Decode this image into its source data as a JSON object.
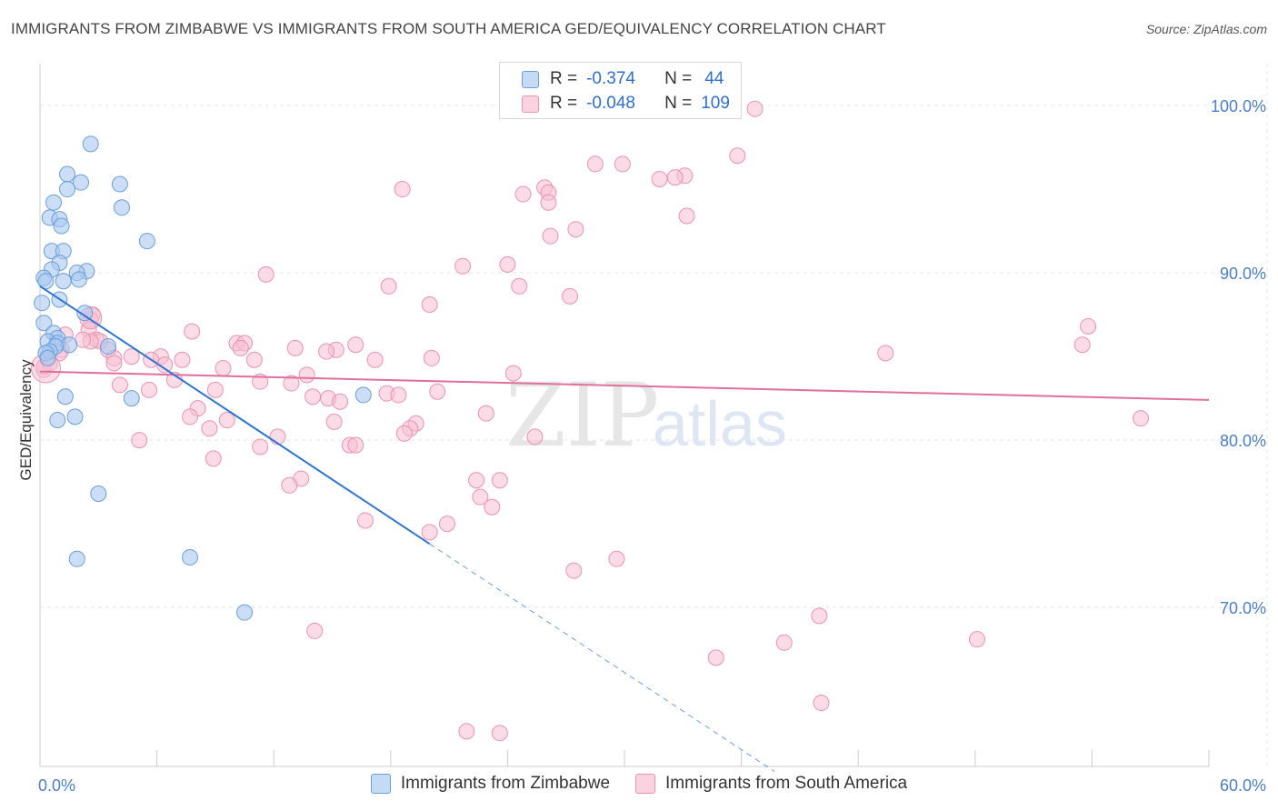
{
  "header": {
    "title": "IMMIGRANTS FROM ZIMBABWE VS IMMIGRANTS FROM SOUTH AMERICA GED/EQUIVALENCY CORRELATION CHART",
    "source": "Source: ZipAtlas.com"
  },
  "watermark": {
    "part1": "ZIP",
    "part2": "atlas"
  },
  "legend": {
    "rows": [
      {
        "r_label": "R =",
        "r_value": "-0.374",
        "n_label": "N =",
        "n_value": "44"
      },
      {
        "r_label": "R =",
        "r_value": "-0.048",
        "n_label": "N =",
        "n_value": "109"
      }
    ]
  },
  "colors": {
    "zimbabwe_fill": "#a8c8f0",
    "zimbabwe_stroke": "#6a9fdc",
    "zimbabwe_line": "#2e74d0",
    "south_america_fill": "#f7bfd2",
    "south_america_stroke": "#ec92b1",
    "south_america_line": "#e0709a",
    "tick_text": "#4a7ec9",
    "grid": "#e4e4e4"
  },
  "chart_data": {
    "type": "scatter",
    "title": "IMMIGRANTS FROM ZIMBABWE VS IMMIGRANTS FROM SOUTH AMERICA GED/EQUIVALENCY CORRELATION CHART",
    "xlabel": "",
    "ylabel": "GED/Equivalency",
    "xlim": [
      0,
      60
    ],
    "ylim": [
      60.5,
      102.5
    ],
    "x_tick_labels": [
      "0.0%",
      "60.0%"
    ],
    "y_ticks": [
      70,
      80,
      90,
      100
    ],
    "y_tick_labels": [
      "70.0%",
      "80.0%",
      "90.0%",
      "100.0%"
    ],
    "grid": true,
    "legend_position": "top-center",
    "series": [
      {
        "name": "Immigrants from Zimbabwe",
        "r": -0.374,
        "n": 44,
        "trend": {
          "x": [
            0,
            20
          ],
          "y": [
            89.2,
            73.8
          ],
          "dashed_to": [
            37.7,
            60.2
          ]
        },
        "points": [
          [
            2.6,
            97.7
          ],
          [
            1.4,
            95.9
          ],
          [
            2.1,
            95.4
          ],
          [
            4.1,
            95.3
          ],
          [
            1.4,
            95.0
          ],
          [
            0.7,
            94.2
          ],
          [
            4.2,
            93.9
          ],
          [
            0.5,
            93.3
          ],
          [
            1.0,
            93.2
          ],
          [
            1.1,
            92.8
          ],
          [
            5.5,
            91.9
          ],
          [
            0.6,
            91.3
          ],
          [
            1.2,
            91.3
          ],
          [
            1.0,
            90.6
          ],
          [
            0.6,
            90.2
          ],
          [
            2.4,
            90.1
          ],
          [
            1.9,
            90.0
          ],
          [
            0.2,
            89.7
          ],
          [
            2.0,
            89.6
          ],
          [
            0.3,
            89.5
          ],
          [
            1.2,
            89.5
          ],
          [
            1.0,
            88.4
          ],
          [
            0.1,
            88.2
          ],
          [
            2.3,
            87.6
          ],
          [
            0.2,
            87.0
          ],
          [
            0.7,
            86.4
          ],
          [
            0.9,
            86.1
          ],
          [
            0.4,
            85.9
          ],
          [
            0.9,
            85.8
          ],
          [
            1.5,
            85.7
          ],
          [
            0.8,
            85.6
          ],
          [
            3.5,
            85.6
          ],
          [
            0.5,
            85.3
          ],
          [
            0.3,
            85.2
          ],
          [
            0.4,
            84.9
          ],
          [
            1.3,
            82.6
          ],
          [
            4.7,
            82.5
          ],
          [
            16.6,
            82.7
          ],
          [
            1.8,
            81.4
          ],
          [
            0.9,
            81.2
          ],
          [
            3.0,
            76.8
          ],
          [
            1.9,
            72.9
          ],
          [
            7.7,
            73.0
          ],
          [
            10.5,
            69.7
          ]
        ]
      },
      {
        "name": "Immigrants from South America",
        "r": -0.048,
        "n": 109,
        "trend": {
          "x": [
            0,
            60
          ],
          "y": [
            84.1,
            82.4
          ]
        },
        "points": [
          [
            36.7,
            99.8
          ],
          [
            35.8,
            97.0
          ],
          [
            28.5,
            96.5
          ],
          [
            29.9,
            96.5
          ],
          [
            33.1,
            95.8
          ],
          [
            32.6,
            95.7
          ],
          [
            31.8,
            95.6
          ],
          [
            25.9,
            95.1
          ],
          [
            18.6,
            95.0
          ],
          [
            26.1,
            94.8
          ],
          [
            24.8,
            94.7
          ],
          [
            26.1,
            94.2
          ],
          [
            33.2,
            93.4
          ],
          [
            27.5,
            92.6
          ],
          [
            26.2,
            92.2
          ],
          [
            24.0,
            90.5
          ],
          [
            21.7,
            90.4
          ],
          [
            11.6,
            89.9
          ],
          [
            17.9,
            89.2
          ],
          [
            24.6,
            89.2
          ],
          [
            27.2,
            88.6
          ],
          [
            20.0,
            88.1
          ],
          [
            2.7,
            87.5
          ],
          [
            2.6,
            87.2
          ],
          [
            53.8,
            86.8
          ],
          [
            2.5,
            86.6
          ],
          [
            1.3,
            86.3
          ],
          [
            7.8,
            86.5
          ],
          [
            2.9,
            86.0
          ],
          [
            3.1,
            85.9
          ],
          [
            10.1,
            85.8
          ],
          [
            10.5,
            85.8
          ],
          [
            16.2,
            85.7
          ],
          [
            2.6,
            85.9
          ],
          [
            10.3,
            85.5
          ],
          [
            13.1,
            85.5
          ],
          [
            53.5,
            85.7
          ],
          [
            15.2,
            85.4
          ],
          [
            14.7,
            85.3
          ],
          [
            1.1,
            85.4
          ],
          [
            3.5,
            85.4
          ],
          [
            43.4,
            85.2
          ],
          [
            4.7,
            85.0
          ],
          [
            6.2,
            85.0
          ],
          [
            3.8,
            84.9
          ],
          [
            7.3,
            84.8
          ],
          [
            5.7,
            84.8
          ],
          [
            20.1,
            84.9
          ],
          [
            17.2,
            84.8
          ],
          [
            11.0,
            84.8
          ],
          [
            3.8,
            84.6
          ],
          [
            6.4,
            84.5
          ],
          [
            0.2,
            84.2
          ],
          [
            9.4,
            84.3
          ],
          [
            24.3,
            84.0
          ],
          [
            13.7,
            83.9
          ],
          [
            6.9,
            83.6
          ],
          [
            11.3,
            83.5
          ],
          [
            4.1,
            83.3
          ],
          [
            12.9,
            83.4
          ],
          [
            5.6,
            83.0
          ],
          [
            9.0,
            83.0
          ],
          [
            20.4,
            82.9
          ],
          [
            17.8,
            82.8
          ],
          [
            18.4,
            82.7
          ],
          [
            14.0,
            82.6
          ],
          [
            14.8,
            82.5
          ],
          [
            15.4,
            82.3
          ],
          [
            8.1,
            81.9
          ],
          [
            22.9,
            81.6
          ],
          [
            7.7,
            81.4
          ],
          [
            9.6,
            81.2
          ],
          [
            15.1,
            81.1
          ],
          [
            19.3,
            81.0
          ],
          [
            19.0,
            80.7
          ],
          [
            8.7,
            80.7
          ],
          [
            18.7,
            80.4
          ],
          [
            12.2,
            80.2
          ],
          [
            25.4,
            80.2
          ],
          [
            5.1,
            80.0
          ],
          [
            15.9,
            79.7
          ],
          [
            16.2,
            79.7
          ],
          [
            11.3,
            79.6
          ],
          [
            8.9,
            78.9
          ],
          [
            22.4,
            77.6
          ],
          [
            23.6,
            77.6
          ],
          [
            13.4,
            77.7
          ],
          [
            12.8,
            77.3
          ],
          [
            22.6,
            76.6
          ],
          [
            23.2,
            76.0
          ],
          [
            16.7,
            75.2
          ],
          [
            20.9,
            75.0
          ],
          [
            20.0,
            74.5
          ],
          [
            29.6,
            72.9
          ],
          [
            27.4,
            72.2
          ],
          [
            40.0,
            69.5
          ],
          [
            14.1,
            68.6
          ],
          [
            48.1,
            68.1
          ],
          [
            38.2,
            67.9
          ],
          [
            34.7,
            67.0
          ],
          [
            40.1,
            64.3
          ],
          [
            21.9,
            62.6
          ],
          [
            23.6,
            62.5
          ],
          [
            0.2,
            84.4
          ],
          [
            2.2,
            86.0
          ],
          [
            56.5,
            81.3
          ],
          [
            0.5,
            84.6
          ],
          [
            0.4,
            85.0
          ],
          [
            1.0,
            85.2
          ]
        ]
      }
    ]
  },
  "bottom_legend": {
    "items": [
      {
        "label": "Immigrants from Zimbabwe"
      },
      {
        "label": "Immigrants from South America"
      }
    ]
  }
}
